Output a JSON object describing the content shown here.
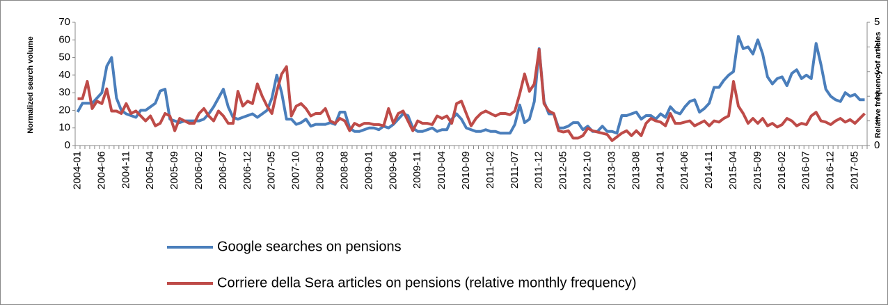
{
  "chart_data": {
    "type": "line",
    "y_label": "Normalized search volume",
    "y2_label": "Relative frequency of articles",
    "categories": [
      "2004-01",
      null,
      null,
      null,
      null,
      "2004-06",
      null,
      null,
      null,
      null,
      "2004-11",
      null,
      null,
      null,
      null,
      "2005-04",
      null,
      null,
      null,
      null,
      "2005-09",
      null,
      null,
      null,
      null,
      "2006-02",
      null,
      null,
      null,
      null,
      "2006-07",
      null,
      null,
      null,
      null,
      "2006-12",
      null,
      null,
      null,
      null,
      "2007-05",
      null,
      null,
      null,
      null,
      "2007-10",
      null,
      null,
      null,
      null,
      "2008-03",
      null,
      null,
      null,
      null,
      "2008-08",
      null,
      null,
      null,
      null,
      "2009-01",
      null,
      null,
      null,
      null,
      "2009-06",
      null,
      null,
      null,
      null,
      "2009-11",
      null,
      null,
      null,
      null,
      "2010-04",
      null,
      null,
      null,
      null,
      "2010-09",
      null,
      null,
      null,
      null,
      "2011-02",
      null,
      null,
      null,
      null,
      "2011-07",
      null,
      null,
      null,
      null,
      "2011-12",
      null,
      null,
      null,
      null,
      "2012-05",
      null,
      null,
      null,
      null,
      "2012-10",
      null,
      null,
      null,
      null,
      "2013-03",
      null,
      null,
      null,
      null,
      "2013-08",
      null,
      null,
      null,
      null,
      "2014-01",
      null,
      null,
      null,
      null,
      "2014-06",
      null,
      null,
      null,
      null,
      "2014-11",
      null,
      null,
      null,
      null,
      "2015-04",
      null,
      null,
      null,
      null,
      "2015-09",
      null,
      null,
      null,
      null,
      "2016-02",
      null,
      null,
      null,
      null,
      "2016-07",
      null,
      null,
      null,
      null,
      "2016-12",
      null,
      null,
      null,
      null,
      "2017-05",
      null,
      null
    ],
    "series": [
      {
        "name": "Google searches on pensions",
        "color": "#4a7ebb",
        "values": [
          19,
          24,
          24,
          24,
          27,
          30,
          45,
          50,
          27,
          20,
          18,
          17,
          16,
          20,
          20,
          22,
          24,
          31,
          32,
          15,
          14,
          13,
          14,
          14,
          14,
          14,
          15,
          18,
          22,
          27,
          32,
          22,
          16,
          15,
          16,
          17,
          18,
          16,
          18,
          20,
          27,
          40,
          30,
          15,
          15,
          12,
          13,
          15,
          11,
          12,
          12,
          12,
          13,
          12,
          19,
          19,
          10,
          8,
          8,
          9,
          10,
          10,
          9,
          11,
          10,
          12,
          15,
          18,
          17,
          10,
          8,
          8,
          9,
          10,
          8,
          9,
          9,
          15,
          18,
          15,
          10,
          9,
          8,
          8,
          9,
          8,
          8,
          7,
          7,
          7,
          12,
          23,
          13,
          15,
          25,
          55,
          25,
          18,
          18,
          10,
          10,
          11,
          13,
          13,
          9,
          11,
          8,
          8,
          11,
          8,
          8,
          7,
          17,
          17,
          18,
          19,
          15,
          17,
          17,
          15,
          18,
          16,
          22,
          19,
          18,
          22,
          25,
          26,
          19,
          21,
          24,
          33,
          33,
          37,
          40,
          42,
          62,
          55,
          56,
          52,
          60,
          52,
          39,
          35,
          38,
          39,
          34,
          41,
          43,
          38,
          40,
          38,
          58,
          46,
          32,
          28,
          26,
          25,
          30,
          28,
          29,
          26,
          26
        ]
      },
      {
        "name": "Corriere della Sera articles on pensions (relative monthly frequency)",
        "color": "#be4b48",
        "axis": "y2",
        "values": [
          1.9,
          1.9,
          2.6,
          1.5,
          1.8,
          1.7,
          2.3,
          1.4,
          1.4,
          1.3,
          1.7,
          1.3,
          1.4,
          1.2,
          1.0,
          1.2,
          0.8,
          0.9,
          1.3,
          1.2,
          0.6,
          1.1,
          1.0,
          0.9,
          0.9,
          1.3,
          1.5,
          1.2,
          1.0,
          1.4,
          1.2,
          0.9,
          0.9,
          2.2,
          1.6,
          1.8,
          1.7,
          2.5,
          2.0,
          1.6,
          1.3,
          2.2,
          2.9,
          3.2,
          1.2,
          1.6,
          1.7,
          1.5,
          1.2,
          1.3,
          1.3,
          1.5,
          1.0,
          0.9,
          1.1,
          1.0,
          0.6,
          0.9,
          0.8,
          0.9,
          0.9,
          0.85,
          0.85,
          0.8,
          1.5,
          0.9,
          1.3,
          1.4,
          1.0,
          0.6,
          1.0,
          0.9,
          0.9,
          0.85,
          1.2,
          1.1,
          1.2,
          0.9,
          1.7,
          1.8,
          1.3,
          0.8,
          1.1,
          1.3,
          1.4,
          1.3,
          1.2,
          1.3,
          1.3,
          1.25,
          1.4,
          2.1,
          2.9,
          2.2,
          2.5,
          3.9,
          1.7,
          1.4,
          1.3,
          0.6,
          0.55,
          0.6,
          0.3,
          0.3,
          0.4,
          0.7,
          0.6,
          0.55,
          0.5,
          0.45,
          0.2,
          0.35,
          0.5,
          0.6,
          0.4,
          0.6,
          0.4,
          0.9,
          1.1,
          1.0,
          0.95,
          0.8,
          1.3,
          0.9,
          0.9,
          0.95,
          1.0,
          0.8,
          0.9,
          1.0,
          0.8,
          1.0,
          0.95,
          1.1,
          1.2,
          2.6,
          1.6,
          1.3,
          0.9,
          1.1,
          0.9,
          1.1,
          0.8,
          0.9,
          0.75,
          0.85,
          1.1,
          1.0,
          0.8,
          0.9,
          0.85,
          1.2,
          1.35,
          1.0,
          0.95,
          0.85,
          1.0,
          1.1,
          0.95,
          1.05,
          0.9,
          1.1,
          1.3
        ]
      }
    ],
    "ylim": [
      0,
      70
    ],
    "yticks": [
      0,
      10,
      20,
      30,
      40,
      50,
      60,
      70
    ],
    "y2lim": [
      0,
      5
    ],
    "y2ticks": [
      0,
      1,
      2,
      3,
      4,
      5
    ],
    "grid": false,
    "legend": "bottom"
  }
}
